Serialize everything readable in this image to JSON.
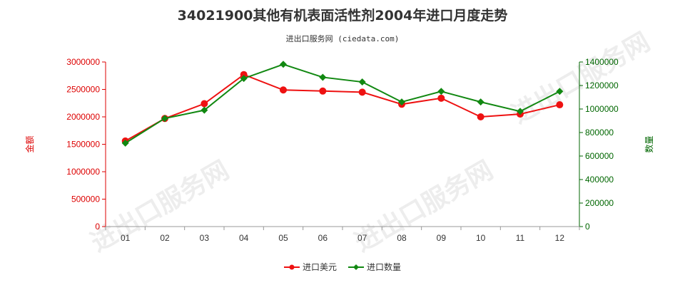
{
  "chart_data": {
    "type": "line",
    "title": "34021900其他有机表面活性剂2004年进口月度走势",
    "subtitle": "进出口服务网 (ciedata.com)",
    "watermark": "进出口服务网",
    "categories": [
      "01",
      "02",
      "03",
      "04",
      "05",
      "06",
      "07",
      "08",
      "09",
      "10",
      "11",
      "12"
    ],
    "left_axis": {
      "label": "金额",
      "ylim": [
        0,
        3000000
      ],
      "ticks": [
        "0",
        "500000",
        "1000000",
        "1500000",
        "2000000",
        "2500000",
        "3000000"
      ],
      "color": "#dd0000"
    },
    "right_axis": {
      "label": "数量",
      "ylim": [
        0,
        1400000
      ],
      "ticks": [
        "0",
        "200000",
        "400000",
        "600000",
        "800000",
        "1000000",
        "1200000",
        "1400000"
      ],
      "color": "#006600"
    },
    "series": [
      {
        "name": "进口美元",
        "axis": "left",
        "color": "#ee1111",
        "values": [
          1560000,
          1970000,
          2240000,
          2770000,
          2490000,
          2470000,
          2450000,
          2230000,
          2340000,
          2000000,
          2050000,
          2220000
        ]
      },
      {
        "name": "进口数量",
        "axis": "right",
        "color": "#118811",
        "values": [
          710000,
          920000,
          990000,
          1260000,
          1380000,
          1270000,
          1230000,
          1060000,
          1150000,
          1060000,
          980000,
          1150000
        ]
      }
    ],
    "grid": false,
    "legend_position": "bottom-center"
  }
}
